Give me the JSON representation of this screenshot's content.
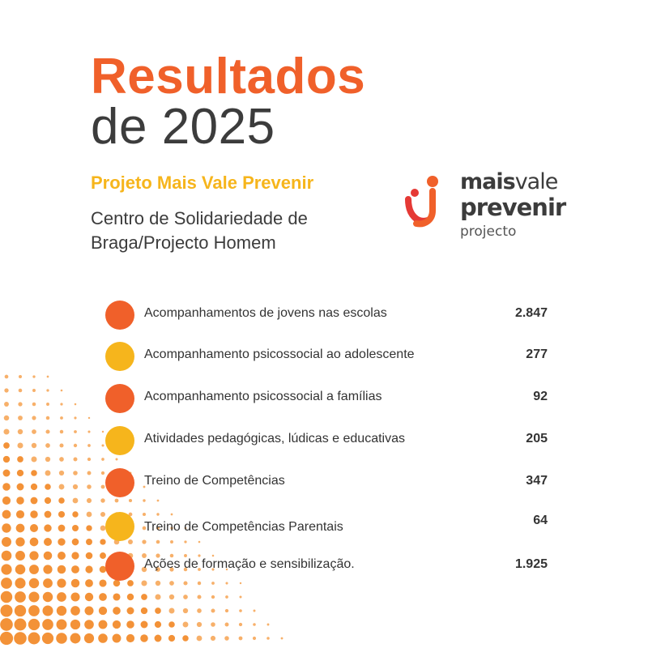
{
  "header": {
    "title_line1": "Resultados",
    "title_line2": "de 2025",
    "project": "Projeto Mais Vale Prevenir",
    "organization": "Centro de Solidariedade de Braga/Projecto Homem"
  },
  "logo": {
    "word_mais": "mais",
    "word_vale": "vale",
    "word_prevenir": "prevenir",
    "word_projecto": "projecto"
  },
  "colors": {
    "orange": "#f0602a",
    "yellow": "#f6b51c",
    "text": "#333333"
  },
  "results": [
    {
      "label": "Acompanhamentos de jovens nas escolas",
      "value": "2.847",
      "color": "#f0602a"
    },
    {
      "label": "Acompanhamento psicossocial ao adolescente",
      "value": "277",
      "color": "#f6b51c"
    },
    {
      "label": "Acompanhamento psicossocial a famílias",
      "value": "92",
      "color": "#f0602a"
    },
    {
      "label": "Atividades pedagógicas, lúdicas e educativas",
      "value": "205",
      "color": "#f6b51c"
    },
    {
      "label": "Treino de Competências",
      "value": "347",
      "color": "#f0602a"
    },
    {
      "label": "Treino de Competências Parentais",
      "value": "64",
      "color": "#f6b51c"
    },
    {
      "label": "Ações de formação e sensibilização.",
      "value": "1.925",
      "color": "#f0602a"
    }
  ]
}
